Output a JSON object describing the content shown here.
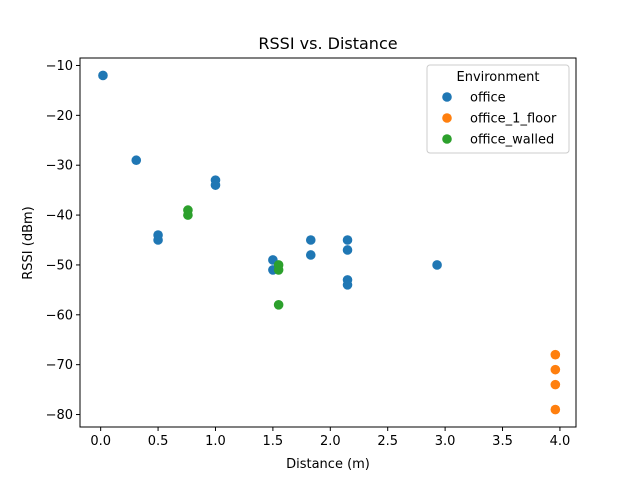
{
  "chart_data": {
    "type": "scatter",
    "title": "RSSI vs. Distance",
    "xlabel": "Distance (m)",
    "ylabel": "RSSI (dBm)",
    "xlim": [
      -0.18,
      4.14
    ],
    "ylim": [
      -82.5,
      -8.5
    ],
    "xticks": [
      0.0,
      0.5,
      1.0,
      1.5,
      2.0,
      2.5,
      3.0,
      3.5,
      4.0
    ],
    "xtick_labels": [
      "0.0",
      "0.5",
      "1.0",
      "1.5",
      "2.0",
      "2.5",
      "3.0",
      "3.5",
      "4.0"
    ],
    "yticks": [
      -10,
      -20,
      -30,
      -40,
      -50,
      -60,
      -70,
      -80
    ],
    "ytick_labels": [
      "−10",
      "−20",
      "−30",
      "−40",
      "−50",
      "−60",
      "−70",
      "−80"
    ],
    "grid": false,
    "legend": {
      "title": "Environment",
      "placement": "top-right"
    },
    "series": [
      {
        "name": "office",
        "color": "#1f77b4",
        "points": [
          [
            0.02,
            -12
          ],
          [
            0.31,
            -29
          ],
          [
            0.5,
            -44
          ],
          [
            0.5,
            -45
          ],
          [
            1.0,
            -33
          ],
          [
            1.0,
            -34
          ],
          [
            1.5,
            -49
          ],
          [
            1.5,
            -51
          ],
          [
            1.83,
            -45
          ],
          [
            1.83,
            -48
          ],
          [
            2.15,
            -45
          ],
          [
            2.15,
            -47
          ],
          [
            2.15,
            -53
          ],
          [
            2.15,
            -54
          ],
          [
            2.93,
            -50
          ]
        ]
      },
      {
        "name": "office_1_floor",
        "color": "#ff7f0e",
        "points": [
          [
            3.96,
            -68
          ],
          [
            3.96,
            -71
          ],
          [
            3.96,
            -74
          ],
          [
            3.96,
            -79
          ]
        ]
      },
      {
        "name": "office_walled",
        "color": "#2ca02c",
        "points": [
          [
            0.76,
            -39
          ],
          [
            0.76,
            -40
          ],
          [
            1.55,
            -50
          ],
          [
            1.55,
            -51
          ],
          [
            1.55,
            -58
          ]
        ]
      }
    ]
  }
}
